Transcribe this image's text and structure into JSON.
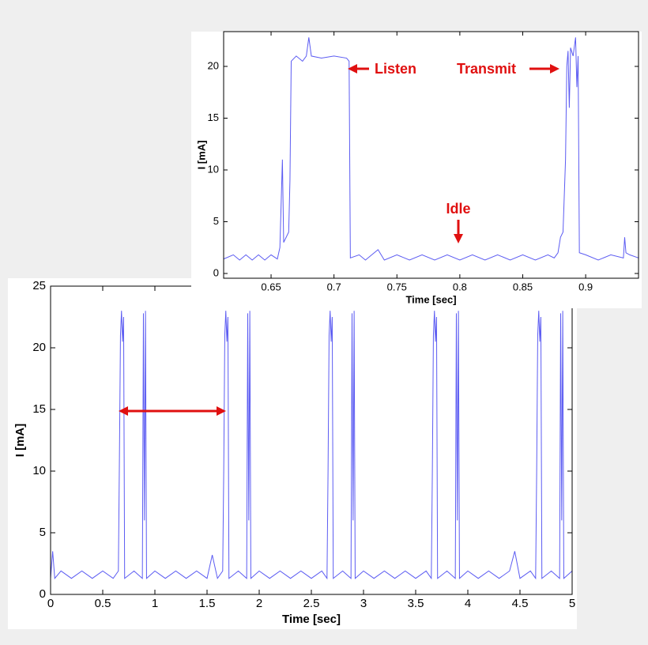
{
  "chart_data": [
    {
      "type": "line",
      "x_label": "Time [sec]",
      "y_label": "I [mA]",
      "color": "#5c5cf2",
      "xlim": [
        0,
        5
      ],
      "ylim": [
        0,
        25
      ],
      "xticks": [
        0,
        0.5,
        1,
        1.5,
        2,
        2.5,
        3,
        3.5,
        4,
        4.5,
        5
      ],
      "yticks": [
        0,
        5,
        10,
        15,
        20,
        25
      ],
      "x": [
        0,
        0.02,
        0.04,
        0.1,
        0.2,
        0.3,
        0.4,
        0.5,
        0.6,
        0.65,
        0.66,
        0.67,
        0.68,
        0.69,
        0.7,
        0.71,
        0.8,
        0.88,
        0.89,
        0.9,
        0.91,
        0.92,
        1.0,
        1.1,
        1.2,
        1.3,
        1.4,
        1.5,
        1.55,
        1.6,
        1.65,
        1.66,
        1.67,
        1.68,
        1.69,
        1.7,
        1.71,
        1.8,
        1.88,
        1.89,
        1.9,
        1.91,
        1.92,
        2.0,
        2.1,
        2.2,
        2.3,
        2.4,
        2.5,
        2.6,
        2.65,
        2.66,
        2.67,
        2.68,
        2.69,
        2.7,
        2.71,
        2.8,
        2.88,
        2.89,
        2.9,
        2.91,
        2.92,
        3.0,
        3.1,
        3.2,
        3.3,
        3.4,
        3.5,
        3.6,
        3.65,
        3.66,
        3.67,
        3.68,
        3.69,
        3.7,
        3.71,
        3.8,
        3.88,
        3.89,
        3.9,
        3.91,
        3.92,
        4.0,
        4.1,
        4.2,
        4.3,
        4.4,
        4.45,
        4.5,
        4.6,
        4.65,
        4.66,
        4.67,
        4.68,
        4.69,
        4.7,
        4.71,
        4.8,
        4.88,
        4.89,
        4.9,
        4.91,
        4.92,
        5.0
      ],
      "values": [
        1.3,
        3.5,
        1.3,
        1.9,
        1.3,
        1.9,
        1.3,
        1.9,
        1.3,
        1.9,
        11,
        21,
        23,
        20.5,
        22.5,
        1.3,
        1.9,
        1.3,
        22.8,
        6,
        23,
        1.3,
        1.9,
        1.3,
        1.9,
        1.3,
        1.9,
        1.3,
        3.2,
        1.3,
        1.9,
        10,
        21,
        23,
        20.5,
        22.5,
        1.3,
        1.9,
        1.3,
        22.8,
        6,
        23,
        1.3,
        1.9,
        1.3,
        1.9,
        1.3,
        1.9,
        1.3,
        1.9,
        1.3,
        10,
        21,
        23,
        20.5,
        22.5,
        1.3,
        1.9,
        1.3,
        22.8,
        6,
        23,
        1.3,
        1.9,
        1.3,
        1.9,
        1.3,
        1.9,
        1.3,
        1.9,
        1.3,
        10,
        21,
        23,
        20.5,
        22.5,
        1.3,
        1.9,
        1.3,
        22.8,
        6,
        23,
        1.3,
        1.9,
        1.3,
        1.9,
        1.3,
        1.9,
        3.5,
        1.3,
        1.9,
        1.3,
        10,
        21,
        23,
        20.5,
        22.5,
        1.3,
        1.9,
        1.3,
        22.8,
        6,
        23,
        1.3,
        1.9
      ]
    },
    {
      "type": "line",
      "x_label": "Time [sec]",
      "y_label": "I [mA]",
      "color": "#5c5cf2",
      "xlim": [
        0.6123,
        0.942
      ],
      "ylim": [
        -0.46,
        23.36
      ],
      "xticks": [
        0.65,
        0.7,
        0.75,
        0.8,
        0.85,
        0.9
      ],
      "yticks": [
        0,
        5,
        10,
        15,
        20
      ],
      "annotations": [
        "Listen",
        "Transmit",
        "Idle"
      ],
      "x": [
        0.6123,
        0.62,
        0.625,
        0.63,
        0.635,
        0.64,
        0.645,
        0.65,
        0.655,
        0.657,
        0.659,
        0.66,
        0.662,
        0.664,
        0.665,
        0.666,
        0.67,
        0.675,
        0.678,
        0.68,
        0.682,
        0.69,
        0.7,
        0.71,
        0.712,
        0.713,
        0.72,
        0.725,
        0.73,
        0.735,
        0.74,
        0.75,
        0.76,
        0.77,
        0.78,
        0.79,
        0.8,
        0.81,
        0.82,
        0.83,
        0.84,
        0.85,
        0.86,
        0.87,
        0.875,
        0.878,
        0.88,
        0.882,
        0.884,
        0.885,
        0.886,
        0.887,
        0.888,
        0.89,
        0.892,
        0.893,
        0.894,
        0.895,
        0.9,
        0.91,
        0.92,
        0.93,
        0.931,
        0.932,
        0.935,
        0.942
      ],
      "values": [
        1.4,
        1.8,
        1.3,
        1.8,
        1.3,
        1.8,
        1.3,
        1.8,
        1.4,
        2.5,
        11,
        3,
        3.5,
        4,
        9,
        20.5,
        21,
        20.5,
        21,
        22.8,
        21,
        20.8,
        21,
        20.8,
        20.5,
        1.5,
        1.8,
        1.3,
        1.8,
        2.3,
        1.3,
        1.8,
        1.3,
        1.8,
        1.3,
        1.8,
        1.3,
        1.8,
        1.3,
        1.8,
        1.3,
        1.8,
        1.3,
        1.8,
        1.5,
        2,
        3.5,
        4,
        11,
        20,
        21.5,
        16,
        21.8,
        21,
        22.8,
        18,
        21,
        2,
        1.8,
        1.3,
        1.8,
        1.5,
        3.5,
        2,
        1.8,
        1.5
      ]
    }
  ]
}
